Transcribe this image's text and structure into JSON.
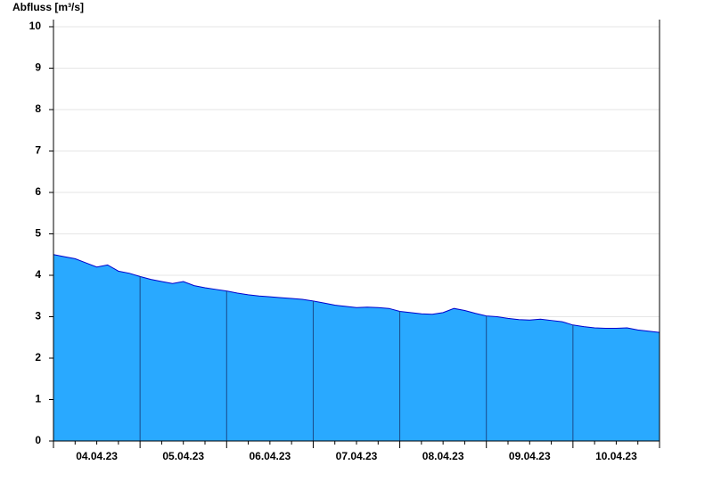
{
  "chart_data": {
    "type": "area",
    "title": "Abfluss [m³/s]",
    "categories": [
      null,
      null,
      null,
      null,
      "04.04.23",
      null,
      null,
      null,
      null,
      null,
      null,
      null,
      "05.04.23",
      null,
      null,
      null,
      null,
      null,
      null,
      null,
      "06.04.23",
      null,
      null,
      null,
      null,
      null,
      null,
      null,
      "07.04.23",
      null,
      null,
      null,
      null,
      null,
      null,
      null,
      "08.04.23",
      null,
      null,
      null,
      null,
      null,
      null,
      null,
      "09.04.23",
      null,
      null,
      null,
      null,
      null,
      null,
      null,
      "10.04.23",
      null,
      null,
      null,
      null
    ],
    "values": [
      4.5,
      4.45,
      4.4,
      4.3,
      4.2,
      4.25,
      4.1,
      4.05,
      3.97,
      3.9,
      3.85,
      3.8,
      3.85,
      3.75,
      3.7,
      3.66,
      3.62,
      3.57,
      3.53,
      3.5,
      3.48,
      3.46,
      3.44,
      3.42,
      3.38,
      3.33,
      3.28,
      3.25,
      3.22,
      3.23,
      3.22,
      3.2,
      3.13,
      3.1,
      3.07,
      3.06,
      3.1,
      3.2,
      3.15,
      3.08,
      3.02,
      3.0,
      2.96,
      2.93,
      2.92,
      2.94,
      2.91,
      2.88,
      2.8,
      2.76,
      2.73,
      2.72,
      2.72,
      2.73,
      2.68,
      2.65,
      2.62
    ],
    "color": "#29a9ff",
    "line_color": "#0000cc",
    "ylim": [
      0,
      10
    ],
    "yticks": [
      0,
      1,
      2,
      3,
      4,
      5,
      6,
      7,
      8,
      9,
      10
    ],
    "grid": true
  }
}
